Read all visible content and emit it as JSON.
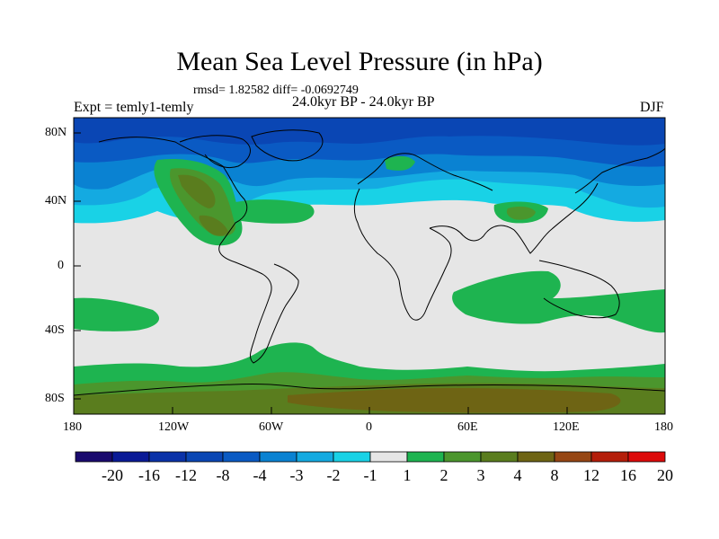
{
  "title": "Mean Sea Level Pressure (in hPa)",
  "stats": "rmsd= 1.82582 diff= -0.0692749",
  "experiment": "Expt = temly1-temly",
  "period": "24.0kyr BP - 24.0kyr BP",
  "season": "DJF",
  "lat_labels": [
    "80N",
    "40N",
    "0",
    "40S",
    "80S"
  ],
  "lon_labels": [
    "180",
    "120W",
    "60W",
    "0",
    "60E",
    "120E",
    "180"
  ],
  "colorbar": {
    "labels": [
      "-20",
      "-16",
      "-12",
      "-8",
      "-4",
      "-3",
      "-2",
      "-1",
      "1",
      "2",
      "3",
      "4",
      "8",
      "12",
      "16",
      "20"
    ],
    "colors": [
      "#1a0a6e",
      "#0a1a96",
      "#0a32a8",
      "#0a46b4",
      "#0a5ac3",
      "#0a82d2",
      "#14aae1",
      "#19d2e6",
      "#e6e6e6",
      "#1eb450",
      "#4b962d",
      "#5a7d1e",
      "#6e6414",
      "#964614",
      "#b41e0a",
      "#dc0a0a"
    ]
  },
  "map_colors": {
    "ocean": "#e6e6e6",
    "c_neg1": "#19d2e6",
    "c_neg2": "#14aae1",
    "c_neg3": "#0a82d2",
    "c_neg4": "#0a5ac3",
    "c_neg8": "#0a46b4",
    "c_pos1": "#1eb450",
    "c_pos2": "#4b962d",
    "c_pos3": "#5a7d1e",
    "c_pos4": "#6e6414"
  }
}
